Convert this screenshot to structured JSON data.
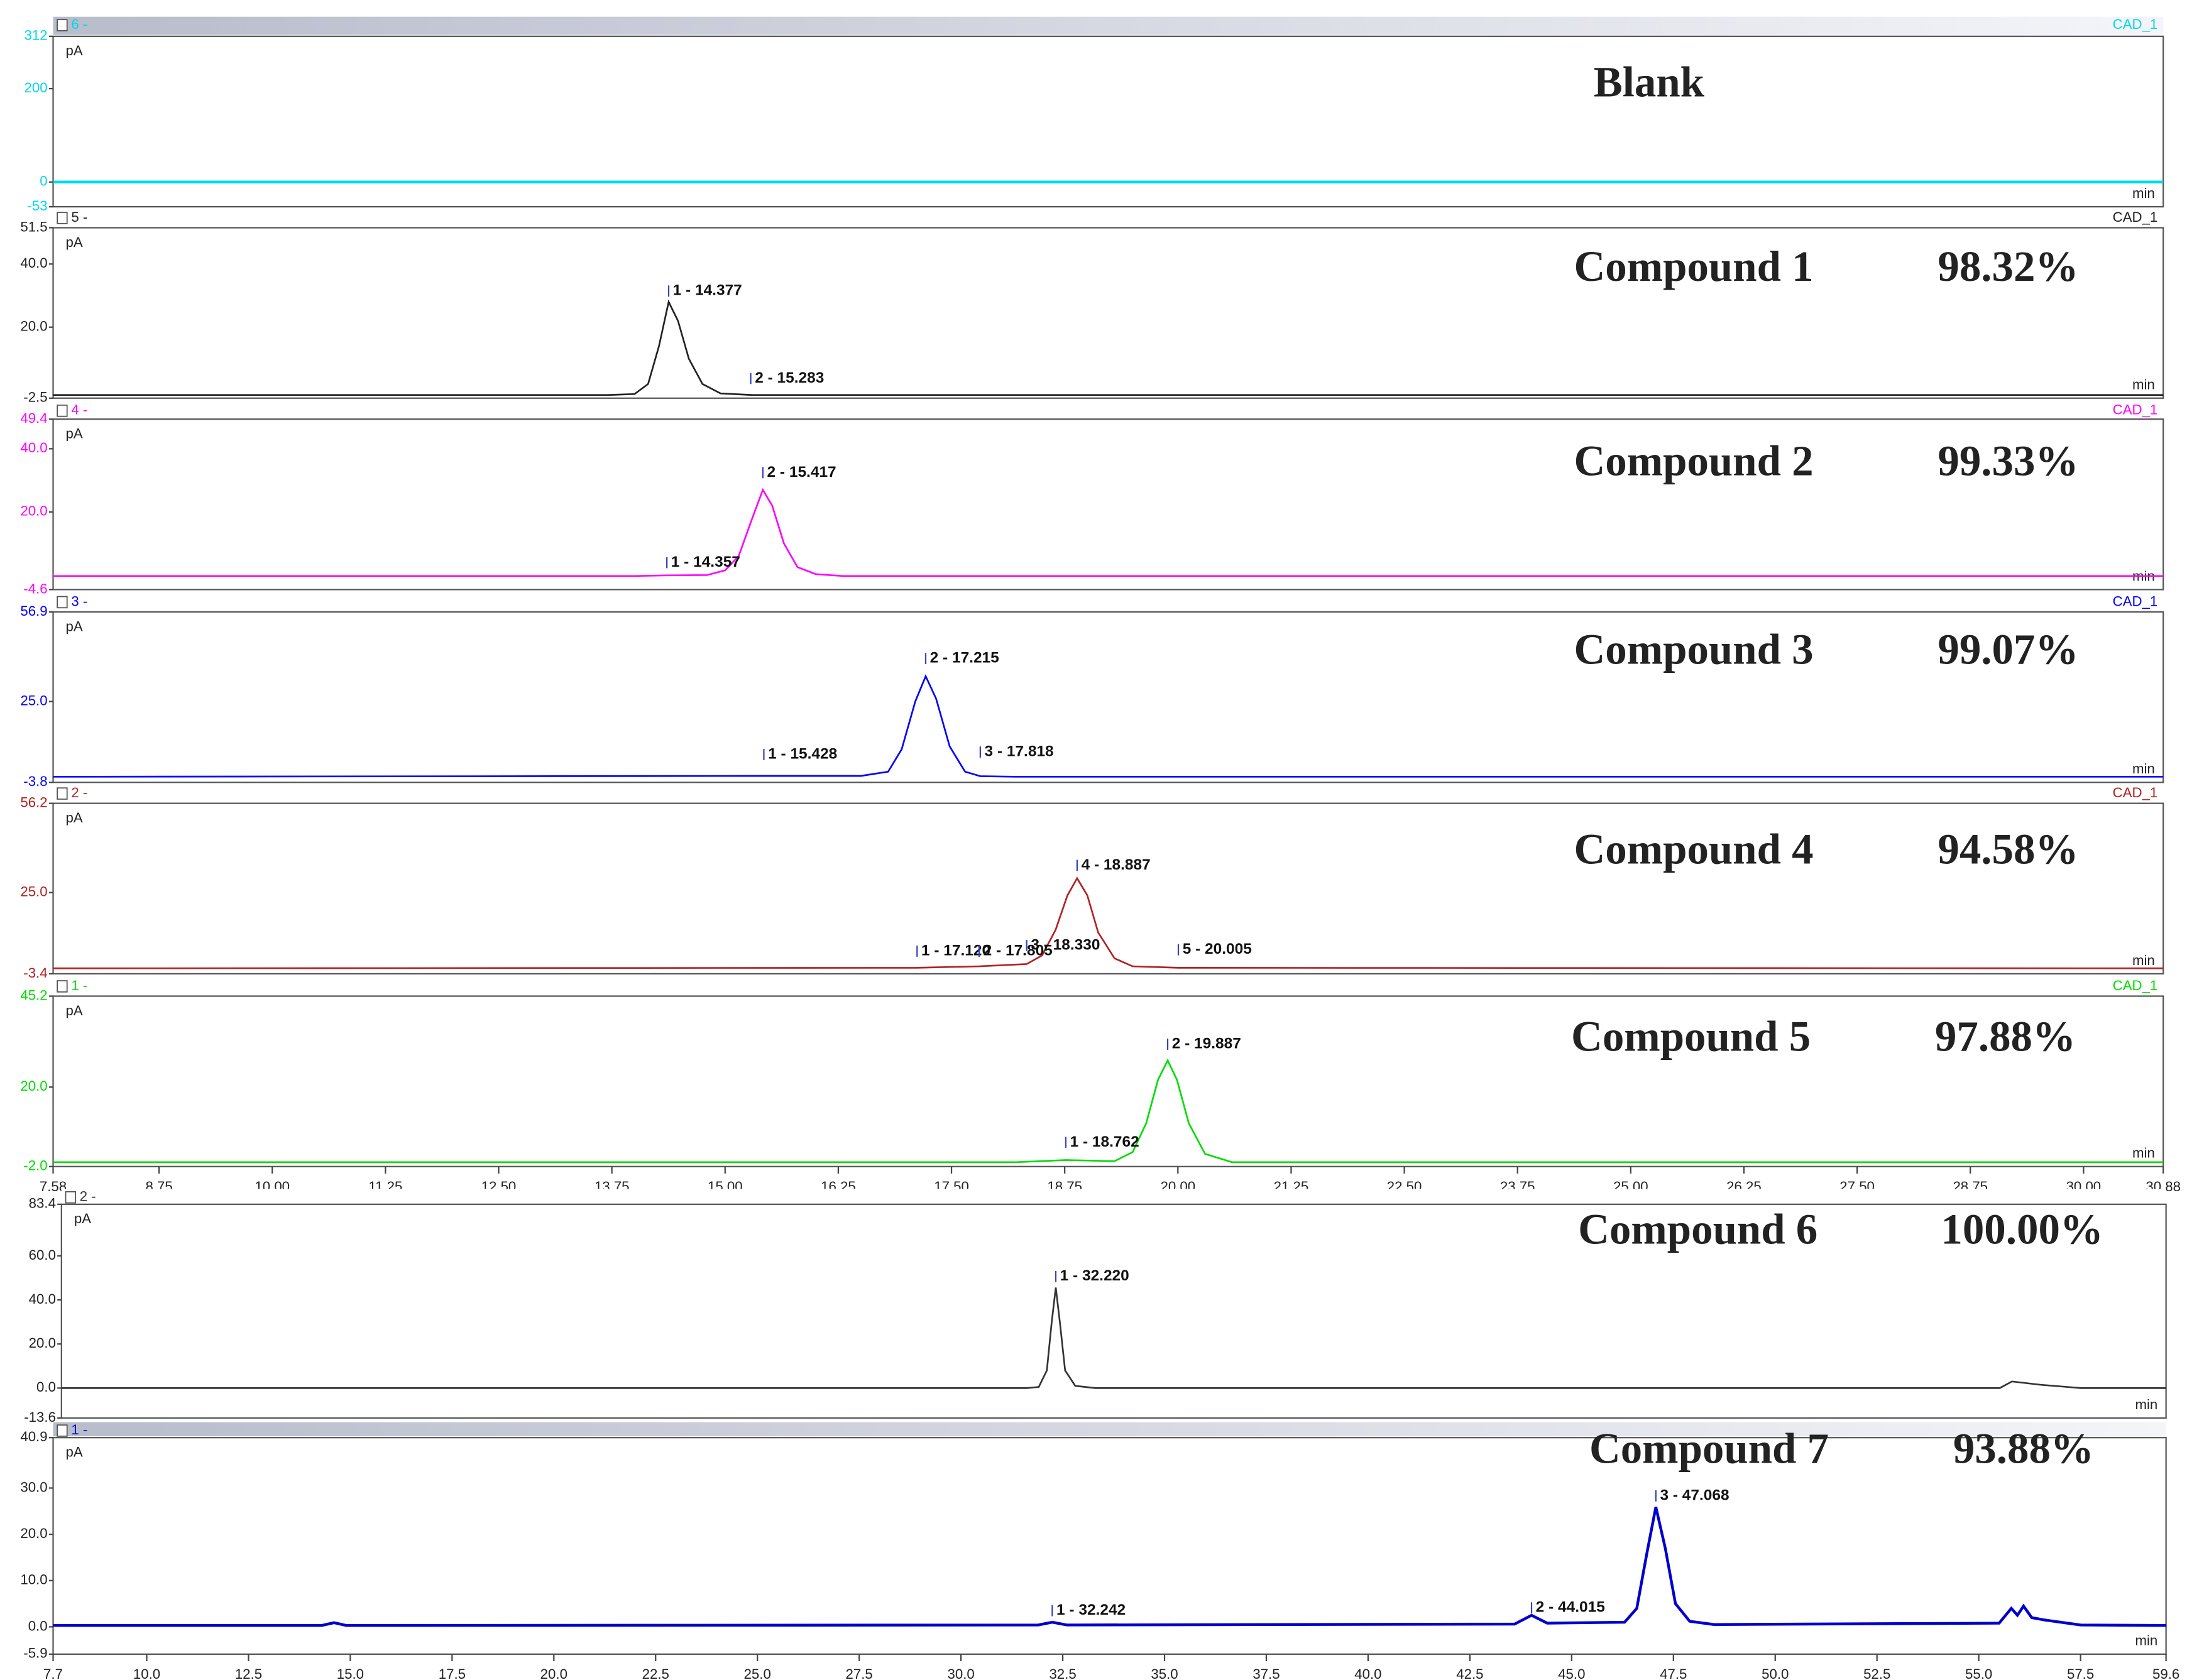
{
  "chart_data": [
    {
      "type": "line",
      "title": "Blank",
      "channel": "6 -",
      "detector": "CAD_1",
      "y_unit": "pA",
      "x_unit": "min",
      "xlim": [
        7.58,
        30.88
      ],
      "ylim": [
        -53,
        312
      ],
      "yticks": [
        312,
        200,
        0,
        -53
      ],
      "series": [
        {
          "color": "#00d8e8",
          "x": [
            7.58,
            30.88
          ],
          "values": [
            0,
            0
          ]
        }
      ],
      "peaks": []
    },
    {
      "type": "line",
      "title": "Compound 1",
      "purity": "98.32%",
      "channel": "5 -",
      "detector": "CAD_1",
      "y_unit": "pA",
      "x_unit": "min",
      "xlim": [
        7.58,
        30.88
      ],
      "ylim": [
        -2.5,
        51.5
      ],
      "yticks": [
        51.5,
        {
          "value": 40,
          "label": "40.0"
        },
        {
          "value": 20,
          "label": "20.0"
        },
        -2.5
      ],
      "series": [
        {
          "color": "#222222",
          "x": [
            7.58,
            13.7,
            14.0,
            14.15,
            14.27,
            14.377,
            14.48,
            14.6,
            14.75,
            14.95,
            15.3,
            30.88
          ],
          "values": [
            -1.5,
            -1.5,
            -1.2,
            2,
            14,
            28,
            22,
            10,
            2,
            -1,
            -1.5,
            -1.5
          ]
        }
      ],
      "peaks": [
        {
          "label": "1 - 14.377",
          "x": 14.377,
          "y": 31
        },
        {
          "label": "2 - 15.283",
          "x": 15.283,
          "y": 3.3
        }
      ]
    },
    {
      "type": "line",
      "title": "Compound 2",
      "purity": "99.33%",
      "channel": "4 -",
      "detector": "CAD_1",
      "y_unit": "pA",
      "x_unit": "min",
      "xlim": [
        7.58,
        30.88
      ],
      "ylim": [
        -4.6,
        49.4
      ],
      "yticks": [
        49.4,
        {
          "value": 40,
          "label": "40.0"
        },
        {
          "value": 20,
          "label": "20.0"
        },
        -4.6
      ],
      "series": [
        {
          "color": "#ff00ff",
          "x": [
            7.58,
            14.0,
            14.357,
            14.8,
            15.0,
            15.15,
            15.3,
            15.417,
            15.52,
            15.65,
            15.8,
            16.0,
            16.3,
            30.88
          ],
          "values": [
            -0.3,
            -0.3,
            -0.1,
            0,
            1.5,
            6,
            18,
            27,
            22,
            10,
            2.5,
            0.3,
            -0.3,
            -0.3
          ]
        }
      ],
      "peaks": [
        {
          "label": "2 - 15.417",
          "x": 15.417,
          "y": 32
        },
        {
          "label": "1 - 14.357",
          "x": 14.357,
          "y": 3.5
        }
      ]
    },
    {
      "type": "line",
      "title": "Compound 3",
      "purity": "99.07%",
      "channel": "3 -",
      "detector": "CAD_1",
      "y_unit": "pA",
      "x_unit": "min",
      "xlim": [
        7.58,
        30.88
      ],
      "ylim": [
        -3.8,
        56.9
      ],
      "yticks": [
        56.9,
        {
          "value": 25,
          "label": "25.0"
        },
        -3.8
      ],
      "series": [
        {
          "color": "#0000ff",
          "x": [
            7.58,
            15.428,
            16.5,
            16.8,
            16.95,
            17.1,
            17.215,
            17.33,
            17.48,
            17.65,
            17.818,
            18.2,
            30.88
          ],
          "values": [
            -1.8,
            -1.5,
            -1.5,
            0,
            8,
            25,
            34,
            26,
            9,
            0,
            -1.6,
            -1.8,
            -1.8
          ]
        }
      ],
      "peaks": [
        {
          "label": "2 - 17.215",
          "x": 17.215,
          "y": 39.8
        },
        {
          "label": "1 - 15.428",
          "x": 15.428,
          "y": 5.6
        },
        {
          "label": "3 - 17.818",
          "x": 17.818,
          "y": 6.5
        }
      ]
    },
    {
      "type": "line",
      "title": "Compound 4",
      "purity": "94.58%",
      "channel": "2 -",
      "detector": "CAD_1",
      "y_unit": "pA",
      "x_unit": "min",
      "xlim": [
        7.58,
        30.88
      ],
      "ylim": [
        -3.4,
        56.2
      ],
      "yticks": [
        56.2,
        {
          "value": 25,
          "label": "25.0"
        },
        -3.4
      ],
      "series": [
        {
          "color": "#b22222",
          "x": [
            7.58,
            17.12,
            17.805,
            18.33,
            18.5,
            18.65,
            18.78,
            18.887,
            19.0,
            19.12,
            19.3,
            19.5,
            20.005,
            30.88
          ],
          "values": [
            -1.5,
            -1.3,
            -0.8,
            0,
            3,
            12,
            24,
            30,
            24,
            11,
            2,
            -0.8,
            -1.3,
            -1.5
          ]
        }
      ],
      "peaks": [
        {
          "label": "4 - 18.887",
          "x": 18.887,
          "y": 34
        },
        {
          "label": "1 - 17.120",
          "x": 17.12,
          "y": 4
        },
        {
          "label": "2 - 17.805",
          "x": 17.805,
          "y": 4
        },
        {
          "label": "3 - 18.330",
          "x": 18.33,
          "y": 6
        },
        {
          "label": "5 - 20.005",
          "x": 20.005,
          "y": 4.5
        }
      ]
    },
    {
      "type": "line",
      "title": "Compound 5",
      "purity": "97.88%",
      "channel": "1 -",
      "detector": "CAD_1",
      "y_unit": "pA",
      "x_unit": "min",
      "xlim": [
        7.58,
        30.88
      ],
      "xticks": [
        7.58,
        8.75,
        {
          "value": 10,
          "label": "10.00"
        },
        11.25,
        {
          "value": 12.5,
          "label": "12.50"
        },
        13.75,
        {
          "value": 15,
          "label": "15.00"
        },
        16.25,
        {
          "value": 17.5,
          "label": "17.50"
        },
        18.75,
        {
          "value": 20,
          "label": "20.00"
        },
        21.25,
        {
          "value": 22.5,
          "label": "22.50"
        },
        23.75,
        {
          "value": 25,
          "label": "25.00"
        },
        26.25,
        {
          "value": 27.5,
          "label": "27.50"
        },
        28.75,
        {
          "value": 30,
          "label": "30.00"
        },
        30.88
      ],
      "ylim": [
        -2,
        45.2
      ],
      "yticks": [
        45.2,
        {
          "value": 20,
          "label": "20.0"
        },
        {
          "value": -2,
          "label": "-2.0"
        }
      ],
      "series": [
        {
          "color": "#00dd00",
          "x": [
            7.58,
            18.2,
            18.762,
            19.3,
            19.5,
            19.65,
            19.78,
            19.887,
            19.99,
            20.12,
            20.3,
            20.6,
            30.88
          ],
          "values": [
            -0.8,
            -0.8,
            -0.2,
            -0.5,
            2,
            10,
            22,
            27.4,
            22,
            10,
            1.5,
            -0.8,
            -0.8
          ]
        }
      ],
      "peaks": [
        {
          "label": "2 - 19.887",
          "x": 19.887,
          "y": 31.5
        },
        {
          "label": "1 - 18.762",
          "x": 18.762,
          "y": 4.3
        }
      ]
    },
    {
      "type": "line",
      "title": "Compound 6",
      "purity": "100.00%",
      "channel": "2 -",
      "y_unit": "pA",
      "x_unit": "min",
      "xlim": [
        7.7,
        59.6
      ],
      "ylim": [
        -13.6,
        83.4
      ],
      "yticks": [
        83.4,
        {
          "value": 60,
          "label": "60.0"
        },
        {
          "value": 40,
          "label": "40.0"
        },
        {
          "value": 20,
          "label": "20.0"
        },
        {
          "value": 0,
          "label": "0.0"
        },
        -13.6
      ],
      "series": [
        {
          "color": "#333333",
          "x": [
            7.7,
            31.5,
            31.8,
            32.0,
            32.12,
            32.22,
            32.32,
            32.45,
            32.7,
            33.2,
            55.5,
            55.8,
            56.5,
            57.5,
            59.6
          ],
          "values": [
            0,
            0,
            0.5,
            8,
            30,
            45.6,
            30,
            8,
            1,
            0,
            0,
            3,
            1.5,
            0,
            0
          ]
        }
      ],
      "peaks": [
        {
          "label": "1 - 32.220",
          "x": 32.22,
          "y": 50
        }
      ]
    },
    {
      "type": "line",
      "title": "Compound 7",
      "purity": "93.88%",
      "channel": "1 -",
      "y_unit": "pA",
      "x_unit": "min",
      "xlim": [
        7.7,
        59.6
      ],
      "xticks": [
        7.7,
        {
          "value": 10,
          "label": "10.0"
        },
        12.5,
        {
          "value": 15,
          "label": "15.0"
        },
        17.5,
        {
          "value": 20,
          "label": "20.0"
        },
        22.5,
        {
          "value": 25,
          "label": "25.0"
        },
        27.5,
        {
          "value": 30,
          "label": "30.0"
        },
        32.5,
        {
          "value": 35,
          "label": "35.0"
        },
        37.5,
        {
          "value": 40,
          "label": "40.0"
        },
        42.5,
        {
          "value": 45,
          "label": "45.0"
        },
        47.5,
        {
          "value": 50,
          "label": "50.0"
        },
        52.5,
        {
          "value": 55,
          "label": "55.0"
        },
        57.5,
        59.6
      ],
      "ylim": [
        -5.9,
        40.9
      ],
      "yticks": [
        40.9,
        {
          "value": 30,
          "label": "30.0"
        },
        {
          "value": 20,
          "label": "20.0"
        },
        {
          "value": 10,
          "label": "10.0"
        },
        {
          "value": 0,
          "label": "0.0"
        },
        -5.9
      ],
      "series": [
        {
          "color": "#0000cc",
          "x": [
            7.7,
            14.3,
            14.6,
            14.9,
            31.9,
            32.242,
            32.6,
            43.6,
            44.015,
            44.4,
            46.3,
            46.6,
            46.85,
            47.068,
            47.3,
            47.55,
            47.9,
            48.5,
            55.5,
            55.8,
            55.95,
            56.1,
            56.3,
            56.6,
            57.5,
            59.6
          ],
          "values": [
            0.3,
            0.3,
            0.9,
            0.3,
            0.4,
            1.0,
            0.4,
            0.6,
            2.5,
            0.8,
            1.0,
            4,
            16,
            25.9,
            17,
            5,
            1.2,
            0.5,
            0.8,
            4,
            2.5,
            4.5,
            2,
            1.5,
            0.4,
            0.3
          ]
        }
      ],
      "peaks": [
        {
          "label": "3 - 47.068",
          "x": 47.068,
          "y": 28
        },
        {
          "label": "2 - 44.015",
          "x": 44.015,
          "y": 3.8
        },
        {
          "label": "1 - 32.242",
          "x": 32.242,
          "y": 3.2
        }
      ]
    }
  ]
}
